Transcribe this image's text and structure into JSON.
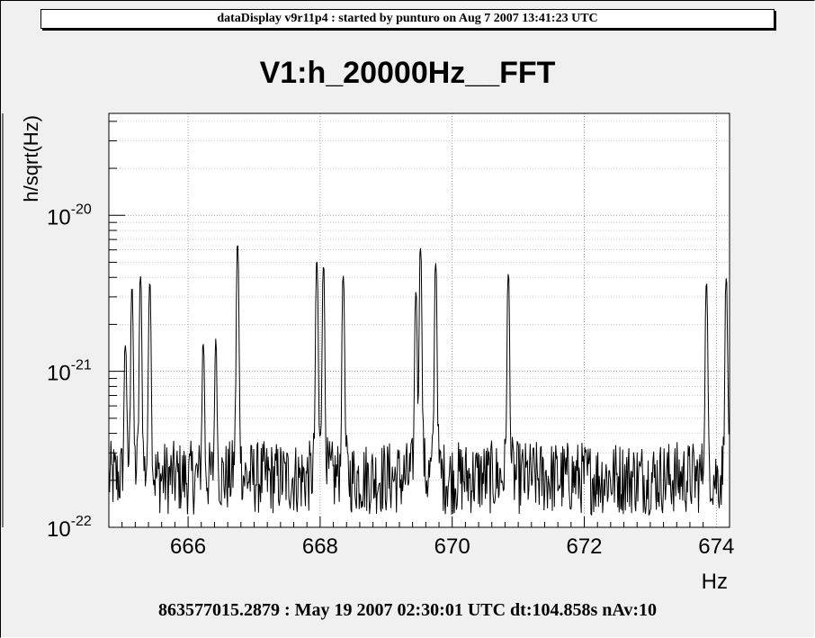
{
  "header": {
    "text": "dataDisplay v9r11p4 : started by punturo on Aug  7 2007 13:41:23 UTC"
  },
  "footer": {
    "text": "863577015.2879 : May 19 2007 02:30:01 UTC dt:104.858s nAv:10"
  },
  "chart_data": {
    "type": "line",
    "title": "V1:h_20000Hz__FFT",
    "xlabel": "Hz",
    "ylabel": "h/sqrt(Hz)",
    "xlim": [
      664.8,
      674.2
    ],
    "ylim": [
      1e-22,
      4.5e-20
    ],
    "yscale": "log",
    "grid": true,
    "x_ticks": [
      666,
      668,
      670,
      672,
      674
    ],
    "x_tick_labels": [
      "666",
      "668",
      "670",
      "672",
      "674"
    ],
    "y_ticks": [
      {
        "mantissa": "10",
        "exponent": "-22"
      },
      {
        "mantissa": "10",
        "exponent": "-21"
      },
      {
        "mantissa": "10",
        "exponent": "-20"
      }
    ],
    "series": [
      {
        "color": "#000000",
        "baseline": 2.2e-22,
        "noise_floor": [
          1.2e-22,
          3.6e-22
        ],
        "peaks": [
          {
            "x": 665.05,
            "y": 1.3e-21
          },
          {
            "x": 665.15,
            "y": 3.2e-21
          },
          {
            "x": 665.28,
            "y": 3.8e-21
          },
          {
            "x": 665.42,
            "y": 3.5e-21
          },
          {
            "x": 666.23,
            "y": 1.3e-21
          },
          {
            "x": 666.42,
            "y": 1.3e-21
          },
          {
            "x": 666.75,
            "y": 6.2e-21
          },
          {
            "x": 667.95,
            "y": 4.8e-21
          },
          {
            "x": 668.05,
            "y": 4.5e-21
          },
          {
            "x": 668.35,
            "y": 3.9e-21
          },
          {
            "x": 669.45,
            "y": 3e-21
          },
          {
            "x": 669.52,
            "y": 6e-21
          },
          {
            "x": 669.75,
            "y": 4.7e-21
          },
          {
            "x": 670.85,
            "y": 3.9e-21
          },
          {
            "x": 673.85,
            "y": 3.4e-21
          },
          {
            "x": 674.15,
            "y": 3.7e-21
          }
        ]
      }
    ]
  }
}
